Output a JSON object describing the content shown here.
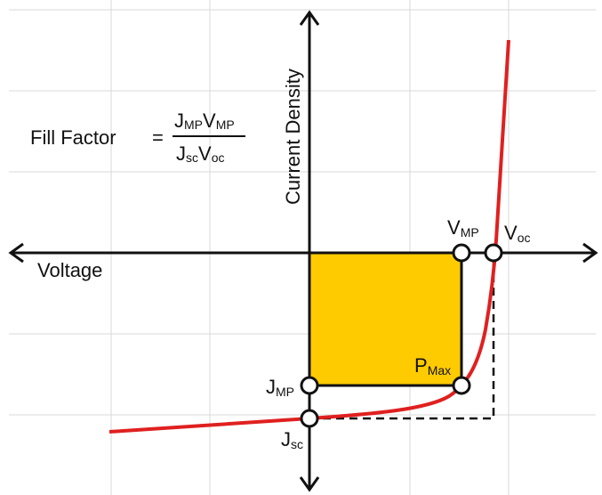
{
  "diagram": {
    "y_axis_label": "Current Density",
    "x_axis_label": "Voltage",
    "formula": {
      "lhs": "Fill Factor",
      "equals": "=",
      "numerator": [
        {
          "main": "J",
          "sub": "MP"
        },
        {
          "main": "V",
          "sub": "MP"
        }
      ],
      "denominator": [
        {
          "main": "J",
          "sub": "sc"
        },
        {
          "main": "V",
          "sub": "oc"
        }
      ]
    },
    "points": {
      "v_mp": {
        "main": "V",
        "sub": "MP"
      },
      "v_oc": {
        "main": "V",
        "sub": "oc"
      },
      "j_mp": {
        "main": "J",
        "sub": "MP"
      },
      "j_sc": {
        "main": "J",
        "sub": "sc"
      },
      "p_max": {
        "main": "P",
        "sub": "Max"
      }
    },
    "colors": {
      "curve": "#e02020",
      "max_power_rectangle": "#fecb00",
      "grid": "#d9d9d9",
      "axes": "#111111"
    }
  }
}
